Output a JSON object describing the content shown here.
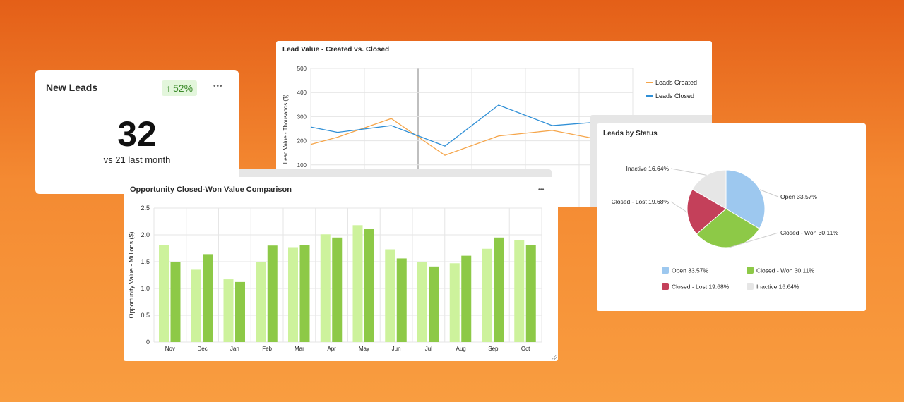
{
  "new_leads": {
    "title": "New Leads",
    "badge": "52%",
    "badge_icon": "arrow-up-icon",
    "value": "32",
    "comparison": "vs 21 last month",
    "menu": "•••",
    "accent": "#3b8a2a",
    "badge_bg": "#e3f6dc"
  },
  "line_chart": {
    "title": "Lead Value - Created vs. Closed"
  },
  "bar_chart": {
    "title": "Opportunity Closed-Won Value Comparison",
    "menu": "•••"
  },
  "pie_chart": {
    "title": "Leads by Status"
  },
  "chart_data": [
    {
      "type": "line",
      "title": "Lead Value - Created vs. Closed",
      "ylabel": "Lead Value - Thousands ($)",
      "ylim": [
        0,
        500
      ],
      "yticks": [
        100,
        200,
        300,
        400,
        500
      ],
      "grid": true,
      "legend": "right",
      "series": [
        {
          "name": "Leads Created",
          "color": "#f5a54a",
          "values": [
            185,
            215,
            292,
            140,
            220,
            243,
            200
          ]
        },
        {
          "name": "Leads Closed",
          "color": "#2f8fd6",
          "values": [
            257,
            235,
            263,
            178,
            348,
            263,
            280
          ]
        }
      ]
    },
    {
      "type": "bar",
      "title": "Opportunity Closed-Won Value Comparison",
      "ylabel": "Opportunity Value - Millions ($)",
      "ylim": [
        0,
        2.5
      ],
      "yticks": [
        "0",
        "0.5",
        "1.0",
        "1.5",
        "2.0",
        "2.5"
      ],
      "grid": true,
      "categories": [
        "Nov",
        "Dec",
        "Jan",
        "Feb",
        "Mar",
        "Apr",
        "May",
        "Jun",
        "Jul",
        "Aug",
        "Sep",
        "Oct"
      ],
      "series": [
        {
          "color": "#cdf29c",
          "values": [
            1.81,
            1.35,
            1.17,
            1.49,
            1.77,
            2.01,
            2.18,
            1.73,
            1.49,
            1.47,
            1.74,
            1.9
          ]
        },
        {
          "color": "#8dc947",
          "values": [
            1.49,
            1.64,
            1.12,
            1.8,
            1.81,
            1.95,
            2.11,
            1.56,
            1.41,
            1.61,
            1.95,
            1.81
          ]
        }
      ]
    },
    {
      "type": "pie",
      "title": "Leads by Status",
      "legend": "bottom",
      "slices": [
        {
          "label": "Open 33.57%",
          "value": 33.57,
          "color": "#9dc8ef"
        },
        {
          "label": "Closed - Won 30.11%",
          "value": 30.11,
          "color": "#8dc947"
        },
        {
          "label": "Closed - Lost 19.68%",
          "value": 19.68,
          "color": "#c4405a"
        },
        {
          "label": "Inactive 16.64%",
          "value": 16.64,
          "color": "#e6e6e6"
        }
      ]
    }
  ]
}
